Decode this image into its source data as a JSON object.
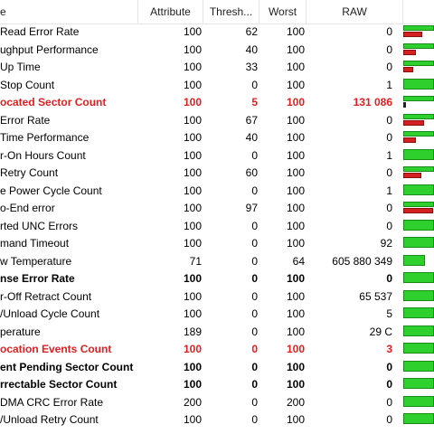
{
  "columns": {
    "name": "e",
    "attribute": "Attribute",
    "threshold": "Thresh...",
    "worst": "Worst",
    "raw": "RAW"
  },
  "colors": {
    "ok_bar": "#2ed02e",
    "warn_bar": "#d42020",
    "alert_text": "#e02020"
  },
  "rows": [
    {
      "name": "Read Error Rate",
      "attribute": "100",
      "threshold": "62",
      "worst": "100",
      "raw": "0",
      "style": "normal",
      "health": 1.0,
      "threshold_level": 0.62
    },
    {
      "name": "ughput Performance",
      "attribute": "100",
      "threshold": "40",
      "worst": "100",
      "raw": "0",
      "style": "normal",
      "health": 1.0,
      "threshold_level": 0.4
    },
    {
      "name": "Up Time",
      "attribute": "100",
      "threshold": "33",
      "worst": "100",
      "raw": "0",
      "style": "normal",
      "health": 1.0,
      "threshold_level": 0.33
    },
    {
      "name": "Stop Count",
      "attribute": "100",
      "threshold": "0",
      "worst": "100",
      "raw": "1",
      "style": "normal",
      "health": 1.0,
      "threshold_level": 0
    },
    {
      "name": "ocated Sector Count",
      "attribute": "100",
      "threshold": "5",
      "worst": "100",
      "raw": "131 086",
      "style": "red",
      "health": 1.0,
      "threshold_level": 0.05
    },
    {
      "name": "Error Rate",
      "attribute": "100",
      "threshold": "67",
      "worst": "100",
      "raw": "0",
      "style": "normal",
      "health": 1.0,
      "threshold_level": 0.67
    },
    {
      "name": "Time Performance",
      "attribute": "100",
      "threshold": "40",
      "worst": "100",
      "raw": "0",
      "style": "normal",
      "health": 1.0,
      "threshold_level": 0.4
    },
    {
      "name": "r-On Hours Count",
      "attribute": "100",
      "threshold": "0",
      "worst": "100",
      "raw": "1",
      "style": "normal",
      "health": 1.0,
      "threshold_level": 0
    },
    {
      "name": "Retry Count",
      "attribute": "100",
      "threshold": "60",
      "worst": "100",
      "raw": "0",
      "style": "normal",
      "health": 1.0,
      "threshold_level": 0.6
    },
    {
      "name": "e Power Cycle Count",
      "attribute": "100",
      "threshold": "0",
      "worst": "100",
      "raw": "1",
      "style": "normal",
      "health": 1.0,
      "threshold_level": 0
    },
    {
      "name": "o-End error",
      "attribute": "100",
      "threshold": "97",
      "worst": "100",
      "raw": "0",
      "style": "normal",
      "health": 1.0,
      "threshold_level": 0.97
    },
    {
      "name": "rted UNC Errors",
      "attribute": "100",
      "threshold": "0",
      "worst": "100",
      "raw": "0",
      "style": "normal",
      "health": 1.0,
      "threshold_level": 0
    },
    {
      "name": "mand Timeout",
      "attribute": "100",
      "threshold": "0",
      "worst": "100",
      "raw": "92",
      "style": "normal",
      "health": 1.0,
      "threshold_level": 0
    },
    {
      "name": "w Temperature",
      "attribute": "71",
      "threshold": "0",
      "worst": "64",
      "raw": "605 880 349",
      "style": "normal",
      "health": 0.71,
      "threshold_level": 0
    },
    {
      "name": "nse Error Rate",
      "attribute": "100",
      "threshold": "0",
      "worst": "100",
      "raw": "0",
      "style": "bold",
      "health": 1.0,
      "threshold_level": 0
    },
    {
      "name": "r-Off Retract Count",
      "attribute": "100",
      "threshold": "0",
      "worst": "100",
      "raw": "65 537",
      "style": "normal",
      "health": 1.0,
      "threshold_level": 0
    },
    {
      "name": "/Unload Cycle Count",
      "attribute": "100",
      "threshold": "0",
      "worst": "100",
      "raw": "5",
      "style": "normal",
      "health": 1.0,
      "threshold_level": 0
    },
    {
      "name": "perature",
      "attribute": "189",
      "threshold": "0",
      "worst": "100",
      "raw": "29 C",
      "style": "normal",
      "health": 1.0,
      "threshold_level": 0
    },
    {
      "name": "ocation Events Count",
      "attribute": "100",
      "threshold": "0",
      "worst": "100",
      "raw": "3",
      "style": "red",
      "health": 1.0,
      "threshold_level": 0
    },
    {
      "name": "ent Pending Sector Count",
      "attribute": "100",
      "threshold": "0",
      "worst": "100",
      "raw": "0",
      "style": "bold",
      "health": 1.0,
      "threshold_level": 0
    },
    {
      "name": "rrectable Sector Count",
      "attribute": "100",
      "threshold": "0",
      "worst": "100",
      "raw": "0",
      "style": "bold",
      "health": 1.0,
      "threshold_level": 0
    },
    {
      "name": "DMA CRC Error Rate",
      "attribute": "200",
      "threshold": "0",
      "worst": "200",
      "raw": "0",
      "style": "normal",
      "health": 1.0,
      "threshold_level": 0
    },
    {
      "name": "/Unload Retry Count",
      "attribute": "100",
      "threshold": "0",
      "worst": "100",
      "raw": "0",
      "style": "normal",
      "health": 1.0,
      "threshold_level": 0
    }
  ]
}
